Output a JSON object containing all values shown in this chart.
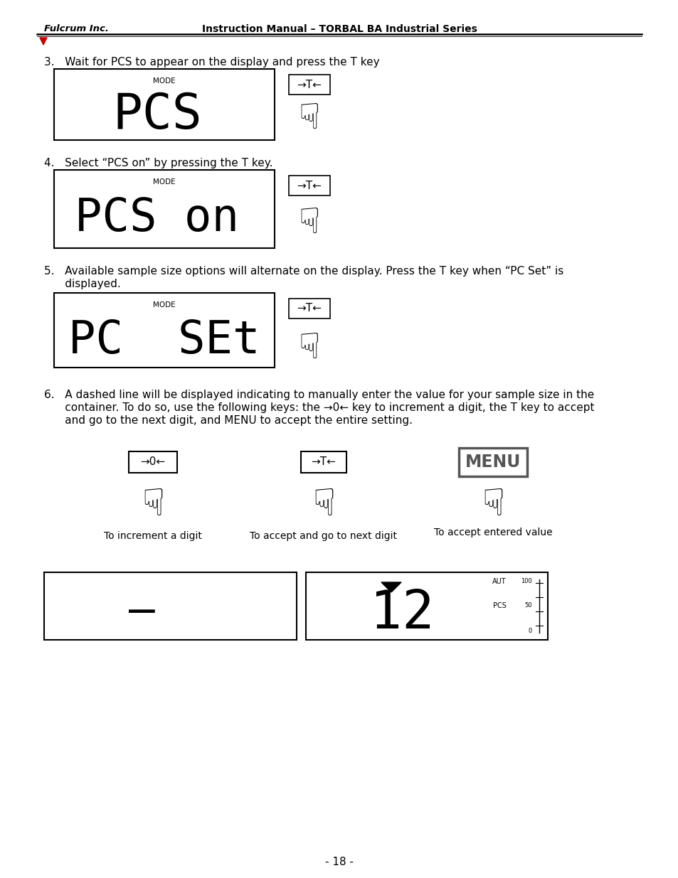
{
  "header_left": "Fulcrum Inc.",
  "header_center": "Instruction Manual – TORBAL BA Industrial Series",
  "bg_color": "#ffffff",
  "text_color": "#000000",
  "red_color": "#cc0000",
  "step3_text": "3.   Wait for PCS to appear on the display and press the T key",
  "step4_text": "4.   Select “PCS on” by pressing the T key.",
  "step5_line1": "5.   Available sample size options will alternate on the display. Press the T key when “PC Set” is",
  "step5_line2": "      displayed.",
  "step6_line1": "6.   A dashed line will be displayed indicating to manually enter the value for your sample size in the",
  "step6_line2": "      container. To do so, use the following keys: the →0← key to increment a digit, the T key to accept",
  "step6_line3": "      and go to the next digit, and MENU to accept the entire setting.",
  "caption1": "To increment a digit",
  "caption2": "To accept and go to next digit",
  "caption3": "To accept entered value",
  "page_number": "- 18 -",
  "display1_text": "PCS",
  "display2_text": "PCS on",
  "display3_text": "PC  SEt",
  "display4_text": "–",
  "display5_right": "12",
  "mode_label": "MODE"
}
